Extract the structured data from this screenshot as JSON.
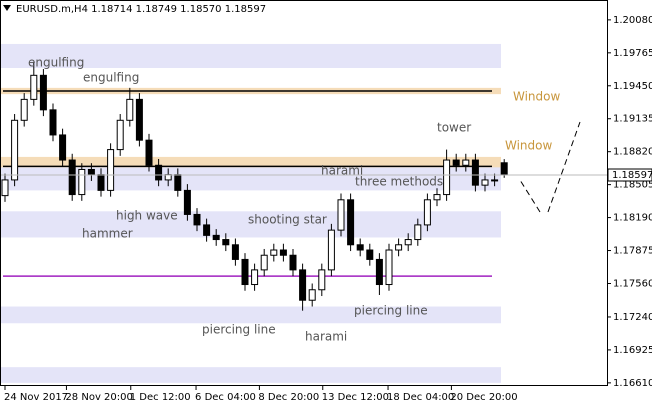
{
  "chart_data": {
    "type": "candlestick",
    "title": "EURUSD.m,H4  1.18714 1.18749 1.18570 1.18597",
    "ylim": [
      1.1658,
      1.2027
    ],
    "yticks": [
      {
        "value": 1.2008,
        "label": "1.20080"
      },
      1.19765,
      {
        "value": 1.1945,
        "label": "1.19450"
      },
      1.19135,
      {
        "value": 1.1882,
        "label": "1.18820"
      },
      1.18505,
      {
        "value": 1.1819,
        "label": "1.18190"
      },
      1.17875,
      {
        "value": 1.1756,
        "label": "1.17560"
      },
      {
        "value": 1.1724,
        "label": "1.17240"
      },
      1.16925,
      {
        "value": 1.1661,
        "label": "1.16610"
      }
    ],
    "xticks": [
      {
        "value": 0,
        "label": "24 Nov 2017"
      },
      {
        "value": 6.4,
        "label": "28 Nov 20:00"
      },
      {
        "value": 13.1,
        "label": "1 Dec 12:00"
      },
      {
        "value": 19.9,
        "label": "6 Dec 04:00"
      },
      {
        "value": 26.5,
        "label": "8 Dec 20:00"
      },
      {
        "value": 33.1,
        "label": "13 Dec 12:00"
      },
      {
        "value": 39.9,
        "label": "18 Dec 04:00"
      },
      {
        "value": 46.5,
        "label": "20 Dec 20:00"
      }
    ],
    "open": [
      1.184,
      1.1855,
      1.1912,
      1.1932,
      1.1955,
      1.1922,
      1.1898,
      1.1874,
      1.1841,
      1.1865,
      1.186,
      1.1845,
      1.1884,
      1.1912,
      1.1932,
      1.1893,
      1.1869,
      1.1855,
      1.186,
      1.1845,
      1.1822,
      1.1812,
      1.1802,
      1.1798,
      1.1793,
      1.1779,
      1.1755,
      1.1769,
      1.1783,
      1.1788,
      1.1783,
      1.1769,
      1.174,
      1.175,
      1.1769,
      1.1807,
      1.1836,
      1.1793,
      1.1788,
      1.1779,
      1.1755,
      1.1788,
      1.1793,
      1.1798,
      1.1812,
      1.1836,
      1.1841,
      1.1874,
      1.1869,
      1.1874,
      1.185,
      1.1855,
      1.18714
    ],
    "high": [
      1.1861,
      1.1918,
      1.1938,
      1.1968,
      1.1961,
      1.1928,
      1.1904,
      1.188,
      1.1871,
      1.1871,
      1.1866,
      1.189,
      1.1918,
      1.1943,
      1.1938,
      1.1899,
      1.1875,
      1.1866,
      1.1866,
      1.1851,
      1.1828,
      1.1818,
      1.1808,
      1.1804,
      1.1799,
      1.1785,
      1.1775,
      1.1789,
      1.1794,
      1.1794,
      1.1789,
      1.1775,
      1.1756,
      1.1775,
      1.1813,
      1.1842,
      1.1842,
      1.1799,
      1.1794,
      1.1785,
      1.1794,
      1.1799,
      1.1804,
      1.1818,
      1.1842,
      1.1847,
      1.1884,
      1.188,
      1.188,
      1.188,
      1.1861,
      1.1861,
      1.18749
    ],
    "low": [
      1.1834,
      1.1849,
      1.1906,
      1.1926,
      1.1916,
      1.1892,
      1.1868,
      1.1835,
      1.1835,
      1.1854,
      1.1839,
      1.1839,
      1.1878,
      1.1906,
      1.1887,
      1.1863,
      1.1849,
      1.1849,
      1.1839,
      1.1816,
      1.1806,
      1.1796,
      1.1792,
      1.1787,
      1.1773,
      1.1749,
      1.1749,
      1.1763,
      1.1777,
      1.1777,
      1.1763,
      1.173,
      1.1734,
      1.1744,
      1.1763,
      1.1801,
      1.1787,
      1.1782,
      1.1773,
      1.1745,
      1.1749,
      1.1782,
      1.1787,
      1.1792,
      1.1806,
      1.183,
      1.1835,
      1.1863,
      1.1863,
      1.1844,
      1.1844,
      1.1849,
      1.1857
    ],
    "close": [
      1.1855,
      1.1912,
      1.1932,
      1.1955,
      1.1922,
      1.1898,
      1.1874,
      1.1841,
      1.1865,
      1.186,
      1.1845,
      1.1884,
      1.1912,
      1.1932,
      1.1893,
      1.1869,
      1.1855,
      1.186,
      1.1845,
      1.1822,
      1.1812,
      1.1802,
      1.1798,
      1.1793,
      1.1779,
      1.1755,
      1.1769,
      1.1783,
      1.1788,
      1.1783,
      1.1769,
      1.174,
      1.175,
      1.1769,
      1.1807,
      1.1836,
      1.1793,
      1.1788,
      1.1779,
      1.1755,
      1.1788,
      1.1793,
      1.1798,
      1.1812,
      1.1836,
      1.1841,
      1.1874,
      1.1869,
      1.1874,
      1.185,
      1.1855,
      1.1855,
      1.18597
    ],
    "bands": [
      {
        "range": [
          1.1962,
          1.1985
        ],
        "color": "#e4e4f8"
      },
      {
        "range": [
          1.1845,
          1.1868
        ],
        "color": "#e4e4f8"
      },
      {
        "range": [
          1.18,
          1.1825
        ],
        "color": "#e4e4f8"
      },
      {
        "range": [
          1.1718,
          1.1734
        ],
        "color": "#e4e4f8"
      },
      {
        "range": [
          1.1661,
          1.1676
        ],
        "color": "#e4e4f8"
      },
      {
        "range": [
          1.1937,
          1.1943
        ],
        "color": "#f5dcb8"
      },
      {
        "range": [
          1.1867,
          1.1877
        ],
        "color": "#f5dcb8"
      }
    ],
    "levels": [
      {
        "value": 1.194,
        "color": "#000000"
      },
      {
        "value": 1.1868,
        "color": "#000000"
      },
      {
        "value": 1.1763,
        "color": "#a020c0"
      }
    ],
    "annotations": [
      "engulfing",
      "engulfing",
      "hammer",
      "high wave",
      "shooting star",
      "piercing line",
      "harami",
      "harami",
      "three methods",
      "piercing line",
      "tower",
      "Window",
      "Window"
    ]
  }
}
